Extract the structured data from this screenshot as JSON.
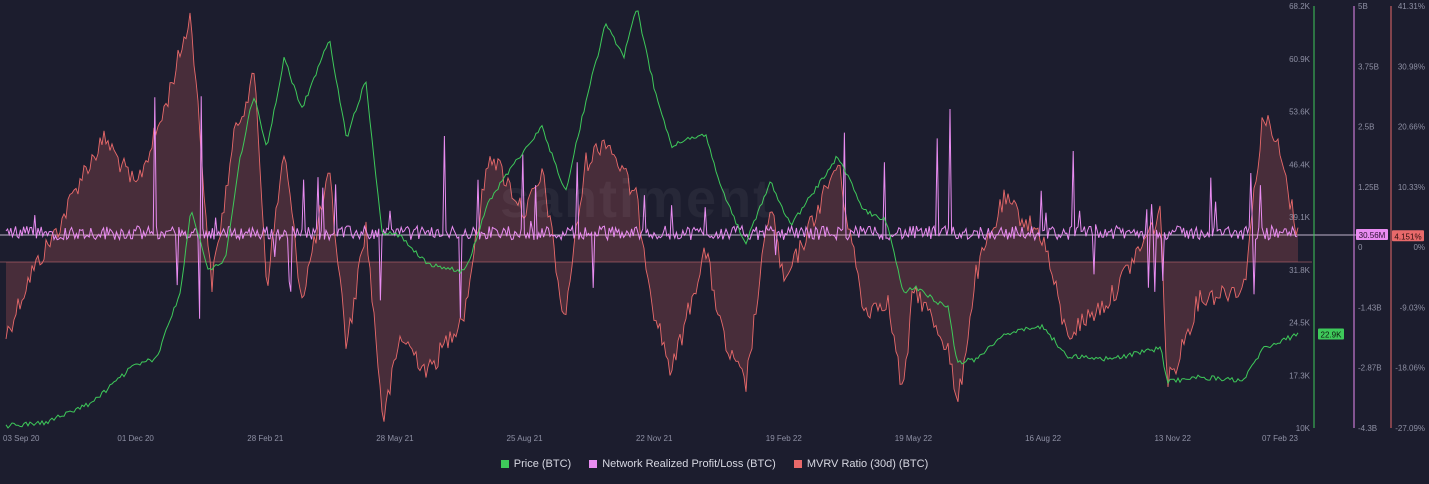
{
  "colors": {
    "background": "#1c1d2e",
    "price": "#3ec95a",
    "nrpl": "#e98cf1",
    "mvrv": "#e8696a",
    "axis_text": "#8e90a4"
  },
  "legend": [
    {
      "label": "Price (BTC)",
      "color": "#3ec95a"
    },
    {
      "label": "Network Realized Profit/Loss (BTC)",
      "color": "#e98cf1"
    },
    {
      "label": "MVRV Ratio (30d) (BTC)",
      "color": "#e8696a"
    }
  ],
  "watermark": "santiment",
  "chart_data": {
    "type": "line",
    "x_ticks": [
      "03 Sep 20",
      "01 Dec 20",
      "28 Feb 21",
      "28 May 21",
      "25 Aug 21",
      "22 Nov 21",
      "19 Feb 22",
      "19 May 22",
      "16 Aug 22",
      "13 Nov 22",
      "07 Feb 23"
    ],
    "axes": {
      "price": {
        "ticks": [
          "68.2K",
          "60.9K",
          "53.6K",
          "46.4K",
          "39.1K",
          "31.8K",
          "24.5K",
          "17.3K",
          "10K"
        ],
        "range": [
          10000,
          68200
        ],
        "current_label": "22.9K",
        "current_value": 22900
      },
      "nrpl": {
        "ticks": [
          "5B",
          "3.75B",
          "2.5B",
          "1.25B",
          "0",
          "-1.43B",
          "-2.87B",
          "-4.3B"
        ],
        "current_label": "30.56M"
      },
      "mvrv": {
        "ticks": [
          "41.31%",
          "30.98%",
          "20.66%",
          "10.33%",
          "0%",
          "-9.03%",
          "-18.06%",
          "-27.09%"
        ],
        "range": [
          -27.09,
          41.31
        ],
        "current_label": "4.151%",
        "current_value": 4.151
      }
    },
    "series": [
      {
        "name": "Price (BTC)",
        "axis": "price",
        "points": [
          [
            "03 Sep 20",
            10300
          ],
          [
            "01 Oct 20",
            10800
          ],
          [
            "01 Nov 20",
            13500
          ],
          [
            "01 Dec 20",
            18800
          ],
          [
            "15 Dec 20",
            19500
          ],
          [
            "01 Jan 21",
            29000
          ],
          [
            "08 Jan 21",
            40500
          ],
          [
            "20 Jan 21",
            31500
          ],
          [
            "01 Feb 21",
            33500
          ],
          [
            "10 Feb 21",
            46500
          ],
          [
            "20 Feb 21",
            56000
          ],
          [
            "01 Mar 21",
            48500
          ],
          [
            "13 Mar 21",
            61000
          ],
          [
            "25 Mar 21",
            54000
          ],
          [
            "13 Apr 21",
            63500
          ],
          [
            "25 Apr 21",
            50000
          ],
          [
            "08 May 21",
            58000
          ],
          [
            "19 May 21",
            37000
          ],
          [
            "01 Jun 21",
            36500
          ],
          [
            "20 Jun 21",
            32500
          ],
          [
            "15 Jul 21",
            31500
          ],
          [
            "01 Aug 21",
            41500
          ],
          [
            "25 Aug 21",
            48500
          ],
          [
            "06 Sep 21",
            51500
          ],
          [
            "22 Sep 21",
            42500
          ],
          [
            "06 Oct 21",
            55000
          ],
          [
            "20 Oct 21",
            66000
          ],
          [
            "01 Nov 21",
            61000
          ],
          [
            "10 Nov 21",
            68000
          ],
          [
            "22 Nov 21",
            57000
          ],
          [
            "04 Dec 21",
            49000
          ],
          [
            "27 Dec 21",
            50500
          ],
          [
            "10 Jan 22",
            41500
          ],
          [
            "24 Jan 22",
            35500
          ],
          [
            "10 Feb 22",
            44000
          ],
          [
            "19 Feb 22",
            40000
          ],
          [
            "24 Feb 22",
            38000
          ],
          [
            "28 Mar 22",
            47500
          ],
          [
            "15 Apr 22",
            40000
          ],
          [
            "01 May 22",
            38500
          ],
          [
            "12 May 22",
            28500
          ],
          [
            "19 May 22",
            29500
          ],
          [
            "12 Jun 22",
            26500
          ],
          [
            "18 Jun 22",
            19000
          ],
          [
            "01 Jul 22",
            19500
          ],
          [
            "20 Jul 22",
            23000
          ],
          [
            "16 Aug 22",
            24000
          ],
          [
            "01 Sep 22",
            20000
          ],
          [
            "01 Oct 22",
            19500
          ],
          [
            "05 Nov 22",
            21000
          ],
          [
            "09 Nov 22",
            16500
          ],
          [
            "13 Nov 22",
            16500
          ],
          [
            "01 Dec 22",
            17000
          ],
          [
            "01 Jan 23",
            16600
          ],
          [
            "14 Jan 23",
            21000
          ],
          [
            "07 Feb 23",
            22900
          ]
        ]
      },
      {
        "name": "Network Realized Profit/Loss (BTC)",
        "axis": "nrpl",
        "baseline_label": "0"
      },
      {
        "name": "MVRV Ratio (30d) (BTC)",
        "axis": "mvrv",
        "points": [
          [
            "03 Sep 20",
            -12
          ],
          [
            "20 Sep 20",
            -2
          ],
          [
            "10 Oct 20",
            6
          ],
          [
            "25 Oct 20",
            14
          ],
          [
            "10 Nov 20",
            20
          ],
          [
            "01 Dec 20",
            12
          ],
          [
            "20 Dec 20",
            24
          ],
          [
            "08 Jan 21",
            40
          ],
          [
            "22 Jan 21",
            -4
          ],
          [
            "08 Feb 21",
            22
          ],
          [
            "21 Feb 21",
            30
          ],
          [
            "01 Mar 21",
            -4
          ],
          [
            "13 Mar 21",
            18
          ],
          [
            "25 Mar 21",
            -6
          ],
          [
            "13 Apr 21",
            14
          ],
          [
            "25 Apr 21",
            -14
          ],
          [
            "08 May 21",
            6
          ],
          [
            "20 May 21",
            -26
          ],
          [
            "01 Jun 21",
            -12
          ],
          [
            "20 Jun 21",
            -18
          ],
          [
            "15 Jul 21",
            -8
          ],
          [
            "01 Aug 21",
            18
          ],
          [
            "25 Aug 21",
            8
          ],
          [
            "07 Sep 21",
            14
          ],
          [
            "21 Sep 21",
            -10
          ],
          [
            "06 Oct 21",
            16
          ],
          [
            "20 Oct 21",
            20
          ],
          [
            "10 Nov 21",
            10
          ],
          [
            "22 Nov 21",
            -8
          ],
          [
            "04 Dec 21",
            -18
          ],
          [
            "27 Dec 21",
            2
          ],
          [
            "10 Jan 22",
            -14
          ],
          [
            "24 Jan 22",
            -20
          ],
          [
            "10 Feb 22",
            10
          ],
          [
            "19 Feb 22",
            -4
          ],
          [
            "28 Mar 22",
            16
          ],
          [
            "15 Apr 22",
            -8
          ],
          [
            "01 May 22",
            -6
          ],
          [
            "12 May 22",
            -22
          ],
          [
            "19 May 22",
            -4
          ],
          [
            "12 Jun 22",
            -14
          ],
          [
            "18 Jun 22",
            -24
          ],
          [
            "01 Jul 22",
            -2
          ],
          [
            "20 Jul 22",
            10
          ],
          [
            "16 Aug 22",
            4
          ],
          [
            "01 Sep 22",
            -12
          ],
          [
            "01 Oct 22",
            -6
          ],
          [
            "05 Nov 22",
            8
          ],
          [
            "09 Nov 22",
            -20
          ],
          [
            "13 Nov 22",
            -18
          ],
          [
            "01 Dec 22",
            -6
          ],
          [
            "01 Jan 23",
            -4
          ],
          [
            "14 Jan 23",
            24
          ],
          [
            "25 Jan 23",
            18
          ],
          [
            "07 Feb 23",
            4.15
          ]
        ]
      }
    ]
  }
}
